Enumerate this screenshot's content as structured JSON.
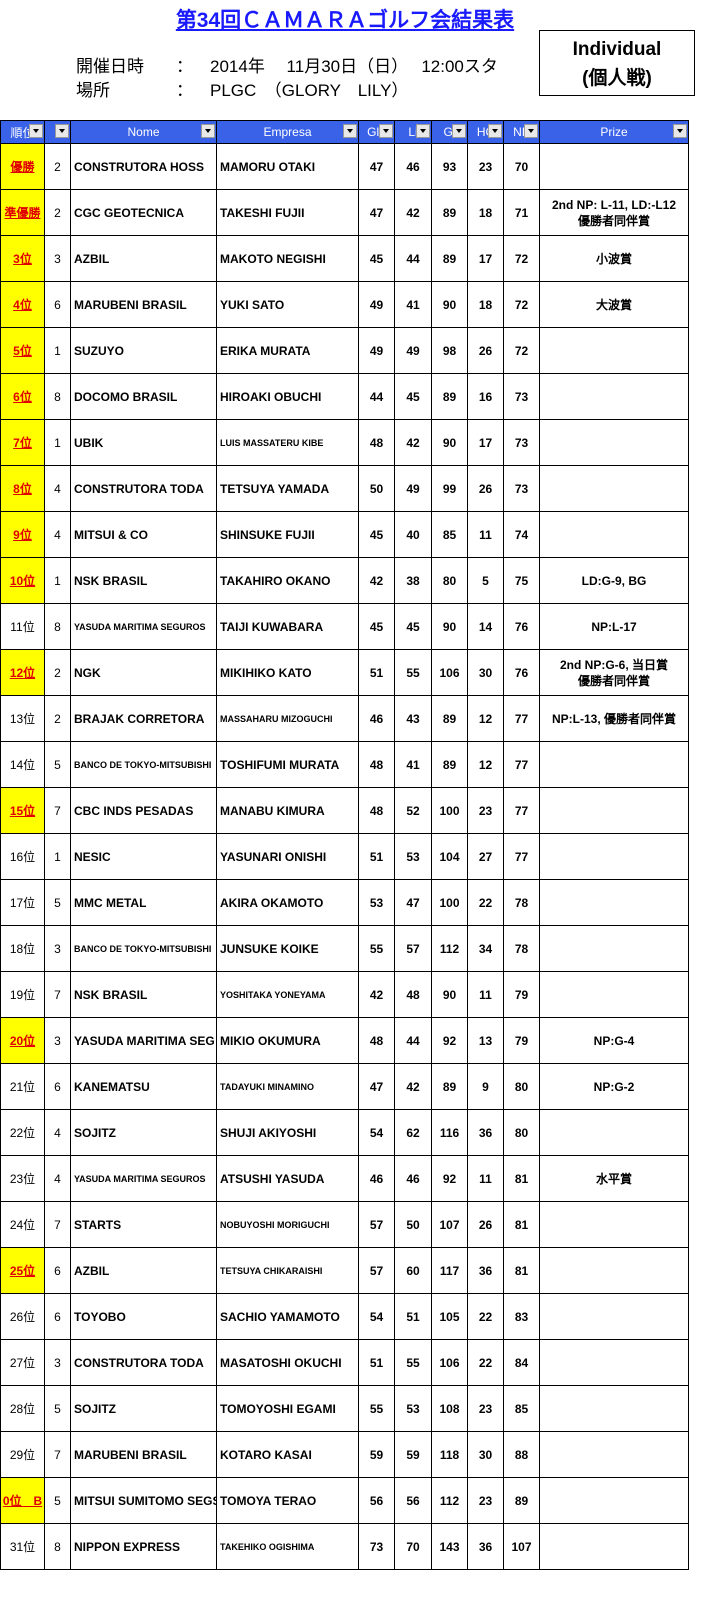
{
  "header": {
    "title": "第34回ＣＡＭＡＲＡゴルフ会結果表",
    "info": [
      {
        "label": "開催日時",
        "sep": "：",
        "value": "2014年　 11月30日（日）　 12:00スタ"
      },
      {
        "label": "場所",
        "sep": "：",
        "value": "PLGC　（GLORY　LILY）"
      }
    ],
    "box": [
      "Individual",
      "(個人戦)"
    ]
  },
  "table": {
    "columns": [
      "順位",
      null,
      "Nome",
      "Empresa",
      "Glo",
      "Li",
      "Gl",
      "HC",
      "NE",
      "Prize"
    ],
    "rows": [
      {
        "cells": [
          "優勝",
          2,
          "CONSTRUTORA HOSS",
          "MAMORU OTAKI",
          47,
          46,
          93,
          23,
          70
        ],
        "prize": [],
        "highlight": true
      },
      {
        "cells": [
          "準優勝",
          2,
          "CGC GEOTECNICA",
          "TAKESHI FUJII",
          47,
          42,
          89,
          18,
          71
        ],
        "prize": [
          "2nd NP: L-11, LD:-L12",
          "優勝者同伴賞"
        ],
        "highlight": true
      },
      {
        "cells": [
          "3位",
          3,
          "AZBIL",
          "MAKOTO NEGISHI",
          45,
          44,
          89,
          17,
          72
        ],
        "prize": [
          "小波賞"
        ],
        "highlight": true
      },
      {
        "cells": [
          "4位",
          6,
          "MARUBENI BRASIL",
          "YUKI SATO",
          49,
          41,
          90,
          18,
          72
        ],
        "prize": [
          "大波賞"
        ],
        "highlight": true
      },
      {
        "cells": [
          "5位",
          1,
          "SUZUYO",
          "ERIKA MURATA",
          49,
          49,
          98,
          26,
          72
        ],
        "prize": [],
        "highlight": true
      },
      {
        "cells": [
          "6位",
          8,
          "DOCOMO BRASIL",
          "HIROAKI OBUCHI",
          44,
          45,
          89,
          16,
          73
        ],
        "prize": [],
        "highlight": true
      },
      {
        "cells": [
          "7位",
          1,
          "UBIK",
          "LUIS MASSATERU KIBE",
          48,
          42,
          90,
          17,
          73
        ],
        "prize": [],
        "highlight": true
      },
      {
        "cells": [
          "8位",
          4,
          "CONSTRUTORA TODA",
          "TETSUYA YAMADA",
          50,
          49,
          99,
          26,
          73
        ],
        "prize": [],
        "highlight": true
      },
      {
        "cells": [
          "9位",
          4,
          "MITSUI & CO",
          "SHINSUKE FUJII",
          45,
          40,
          85,
          11,
          74
        ],
        "prize": [],
        "highlight": true
      },
      {
        "cells": [
          "10位",
          1,
          "NSK BRASIL",
          "TAKAHIRO OKANO",
          42,
          38,
          80,
          5,
          75
        ],
        "prize": [
          "LD:G-9, BG"
        ],
        "highlight": true
      },
      {
        "cells": [
          "11位",
          8,
          "YASUDA MARITIMA SEGUROS",
          "TAIJI KUWABARA",
          45,
          45,
          90,
          14,
          76
        ],
        "prize": [
          "NP:L-17"
        ],
        "highlight": false
      },
      {
        "cells": [
          "12位",
          2,
          "NGK",
          "MIKIHIKO KATO",
          51,
          55,
          106,
          30,
          76
        ],
        "prize": [
          "2nd NP:G-6, 当日賞",
          "優勝者同伴賞"
        ],
        "highlight": true
      },
      {
        "cells": [
          "13位",
          2,
          "BRAJAK CORRETORA",
          "MASSAHARU MIZOGUCHI",
          46,
          43,
          89,
          12,
          77
        ],
        "prize": [
          "NP:L-13, 優勝者同伴賞"
        ],
        "highlight": false
      },
      {
        "cells": [
          "14位",
          5,
          "BANCO DE TOKYO-MITSUBISHI",
          "TOSHIFUMI MURATA",
          48,
          41,
          89,
          12,
          77
        ],
        "prize": [],
        "highlight": false
      },
      {
        "cells": [
          "15位",
          7,
          "CBC INDS PESADAS",
          "MANABU KIMURA",
          48,
          52,
          100,
          23,
          77
        ],
        "prize": [],
        "highlight": true
      },
      {
        "cells": [
          "16位",
          1,
          "NESIC",
          "YASUNARI ONISHI",
          51,
          53,
          104,
          27,
          77
        ],
        "prize": [],
        "highlight": false
      },
      {
        "cells": [
          "17位",
          5,
          "MMC METAL",
          "AKIRA OKAMOTO",
          53,
          47,
          100,
          22,
          78
        ],
        "prize": [],
        "highlight": false
      },
      {
        "cells": [
          "18位",
          3,
          "BANCO DE TOKYO-MITSUBISHI",
          "JUNSUKE KOIKE",
          55,
          57,
          112,
          34,
          78
        ],
        "prize": [],
        "highlight": false
      },
      {
        "cells": [
          "19位",
          7,
          "NSK BRASIL",
          "YOSHITAKA YONEYAMA",
          42,
          48,
          90,
          11,
          79
        ],
        "prize": [],
        "highlight": false
      },
      {
        "cells": [
          "20位",
          3,
          "YASUDA MARITIMA SEG",
          "MIKIO OKUMURA",
          48,
          44,
          92,
          13,
          79
        ],
        "prize": [
          "NP:G-4"
        ],
        "highlight": true
      },
      {
        "cells": [
          "21位",
          6,
          "KANEMATSU",
          "TADAYUKI MINAMINO",
          47,
          42,
          89,
          9,
          80
        ],
        "prize": [
          "NP:G-2"
        ],
        "highlight": false
      },
      {
        "cells": [
          "22位",
          4,
          "SOJITZ",
          "SHUJI AKIYOSHI",
          54,
          62,
          116,
          36,
          80
        ],
        "prize": [],
        "highlight": false
      },
      {
        "cells": [
          "23位",
          4,
          "YASUDA MARITIMA SEGUROS",
          "ATSUSHI YASUDA",
          46,
          46,
          92,
          11,
          81
        ],
        "prize": [
          "水平賞"
        ],
        "highlight": false
      },
      {
        "cells": [
          "24位",
          7,
          "STARTS",
          "NOBUYOSHI MORIGUCHI",
          57,
          50,
          107,
          26,
          81
        ],
        "prize": [],
        "highlight": false
      },
      {
        "cells": [
          "25位",
          6,
          "AZBIL",
          "TETSUYA CHIKARAISHI",
          57,
          60,
          117,
          36,
          81
        ],
        "prize": [],
        "highlight": true
      },
      {
        "cells": [
          "26位",
          6,
          "TOYOBO",
          "SACHIO YAMAMOTO",
          54,
          51,
          105,
          22,
          83
        ],
        "prize": [],
        "highlight": false
      },
      {
        "cells": [
          "27位",
          3,
          "CONSTRUTORA TODA",
          "MASATOSHI OKUCHI",
          51,
          55,
          106,
          22,
          84
        ],
        "prize": [],
        "highlight": false
      },
      {
        "cells": [
          "28位",
          5,
          "SOJITZ",
          "TOMOYOSHI EGAMI",
          55,
          53,
          108,
          23,
          85
        ],
        "prize": [],
        "highlight": false
      },
      {
        "cells": [
          "29位",
          7,
          "MARUBENI BRASIL",
          "KOTARO KASAI",
          59,
          59,
          118,
          30,
          88
        ],
        "prize": [],
        "highlight": false
      },
      {
        "cells": [
          "0位　B",
          5,
          "MITSUI SUMITOMO SEGS",
          "TOMOYA TERAO",
          56,
          56,
          112,
          23,
          89
        ],
        "prize": [],
        "highlight": true
      },
      {
        "cells": [
          "31位",
          8,
          "NIPPON EXPRESS",
          "TAKEHIKO OGISHIMA",
          73,
          70,
          143,
          36,
          107
        ],
        "prize": [],
        "highlight": false
      }
    ]
  }
}
